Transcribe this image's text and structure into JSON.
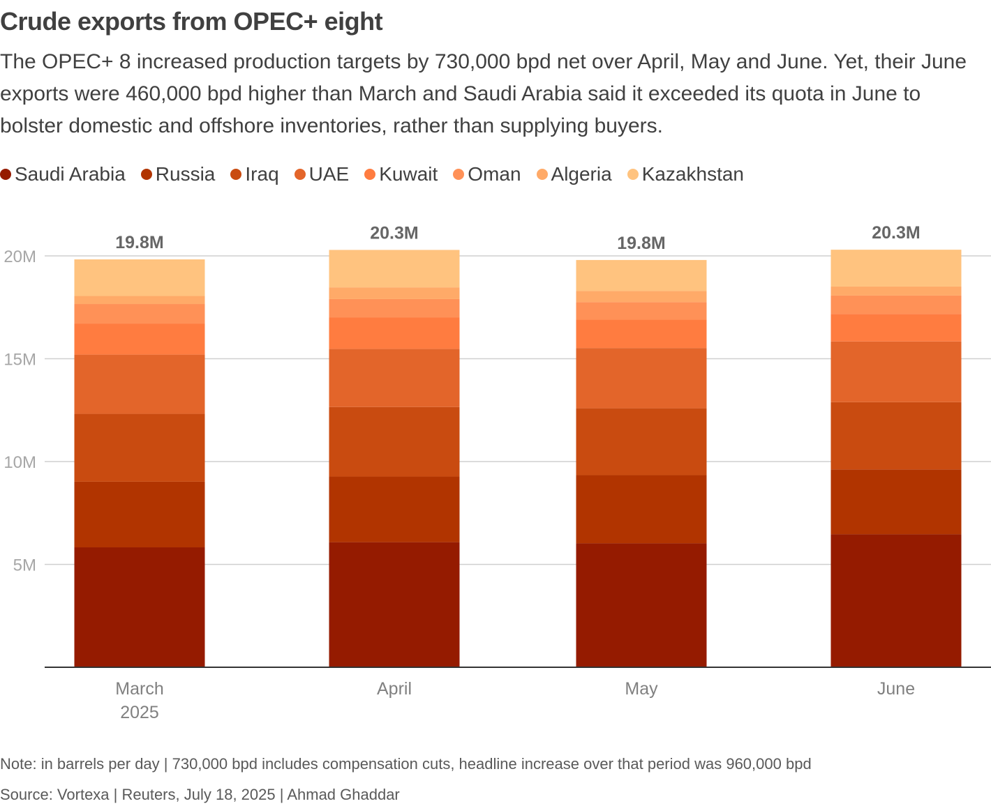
{
  "title": "Crude exports from OPEC+ eight",
  "subtitle": "The OPEC+ 8 increased production targets by 730,000 bpd net over April, May and June. Yet, their June exports were 460,000 bpd higher than March and Saudi Arabia said it exceeded its quota in June to bolster domestic and offshore inventories, rather than supplying buyers.",
  "note": "Note: in barrels per day | 730,000 bpd includes compensation cuts, headline increase over that period was 960,000 bpd",
  "source": "Source: Vortexa | Reuters, July 18, 2025 | Ahmad Ghaddar",
  "chart_data": {
    "type": "bar",
    "stacked": true,
    "categories": [
      "March 2025",
      "April",
      "May",
      "June"
    ],
    "category_labels": [
      [
        "March",
        "2025"
      ],
      [
        "April"
      ],
      [
        "May"
      ],
      [
        "June"
      ]
    ],
    "totals": [
      "19.8M",
      "20.3M",
      "19.8M",
      "20.3M"
    ],
    "ylim": [
      0,
      20000000
    ],
    "yticks": [
      5000000,
      10000000,
      15000000,
      20000000
    ],
    "ytick_labels": [
      "5M",
      "10M",
      "15M",
      "20M"
    ],
    "grid": true,
    "legend_position": "top-left",
    "series": [
      {
        "name": "Saudi Arabia",
        "color": "#951b00",
        "values": [
          5830000,
          6080000,
          6030000,
          6470000
        ]
      },
      {
        "name": "Russia",
        "color": "#b13400",
        "values": [
          3190000,
          3190000,
          3310000,
          3150000
        ]
      },
      {
        "name": "Iraq",
        "color": "#c94b10",
        "values": [
          3300000,
          3380000,
          3250000,
          3270000
        ]
      },
      {
        "name": "UAE",
        "color": "#e3652a",
        "values": [
          2880000,
          2830000,
          2930000,
          2950000
        ]
      },
      {
        "name": "Kuwait",
        "color": "#ff7c40",
        "values": [
          1510000,
          1520000,
          1380000,
          1340000
        ]
      },
      {
        "name": "Oman",
        "color": "#ff9157",
        "values": [
          950000,
          900000,
          850000,
          890000
        ]
      },
      {
        "name": "Algeria",
        "color": "#ffaa68",
        "values": [
          390000,
          570000,
          540000,
          440000
        ]
      },
      {
        "name": "Kazakhstan",
        "color": "#ffc37f",
        "values": [
          1780000,
          1820000,
          1510000,
          1790000
        ]
      }
    ]
  }
}
